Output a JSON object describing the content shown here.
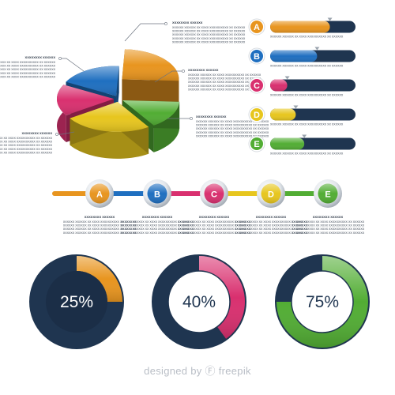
{
  "colors": {
    "orange": "#e8951f",
    "blue": "#1f6fc0",
    "pink": "#d9306f",
    "yellow": "#e7c61e",
    "green": "#52ad34",
    "navy": "#1f3550"
  },
  "placeholder": {
    "heading": "XXXXXXXX XXXXXX",
    "line": "XXXXXX XXXXXX XX XXXX XXXXXXXXXX XX XXXXXX"
  },
  "credit": "designed by Ⓕ freepik",
  "chart_data": [
    {
      "type": "pie",
      "style": "3d-exploded",
      "slices": [
        {
          "color": "orange",
          "value": 25
        },
        {
          "color": "green",
          "value": 15
        },
        {
          "color": "yellow",
          "value": 25
        },
        {
          "color": "pink",
          "value": 17
        },
        {
          "color": "blue",
          "value": 18
        }
      ]
    },
    {
      "type": "bar",
      "orientation": "horizontal",
      "categories": [
        "A",
        "B",
        "C",
        "D",
        "E"
      ],
      "values": [
        70,
        55,
        20,
        30,
        40
      ],
      "colors": [
        "orange",
        "blue",
        "pink",
        "yellow",
        "green"
      ],
      "xlim": [
        0,
        100
      ]
    },
    {
      "type": "timeline",
      "steps": [
        "A",
        "B",
        "C",
        "D",
        "E"
      ],
      "colors": [
        "orange",
        "blue",
        "pink",
        "yellow",
        "green"
      ]
    },
    {
      "type": "donut",
      "series": [
        {
          "label": "25%",
          "value": 25,
          "color": "orange"
        },
        {
          "label": "40%",
          "value": 40,
          "color": "pink"
        },
        {
          "label": "75%",
          "value": 75,
          "color": "green"
        }
      ]
    }
  ]
}
